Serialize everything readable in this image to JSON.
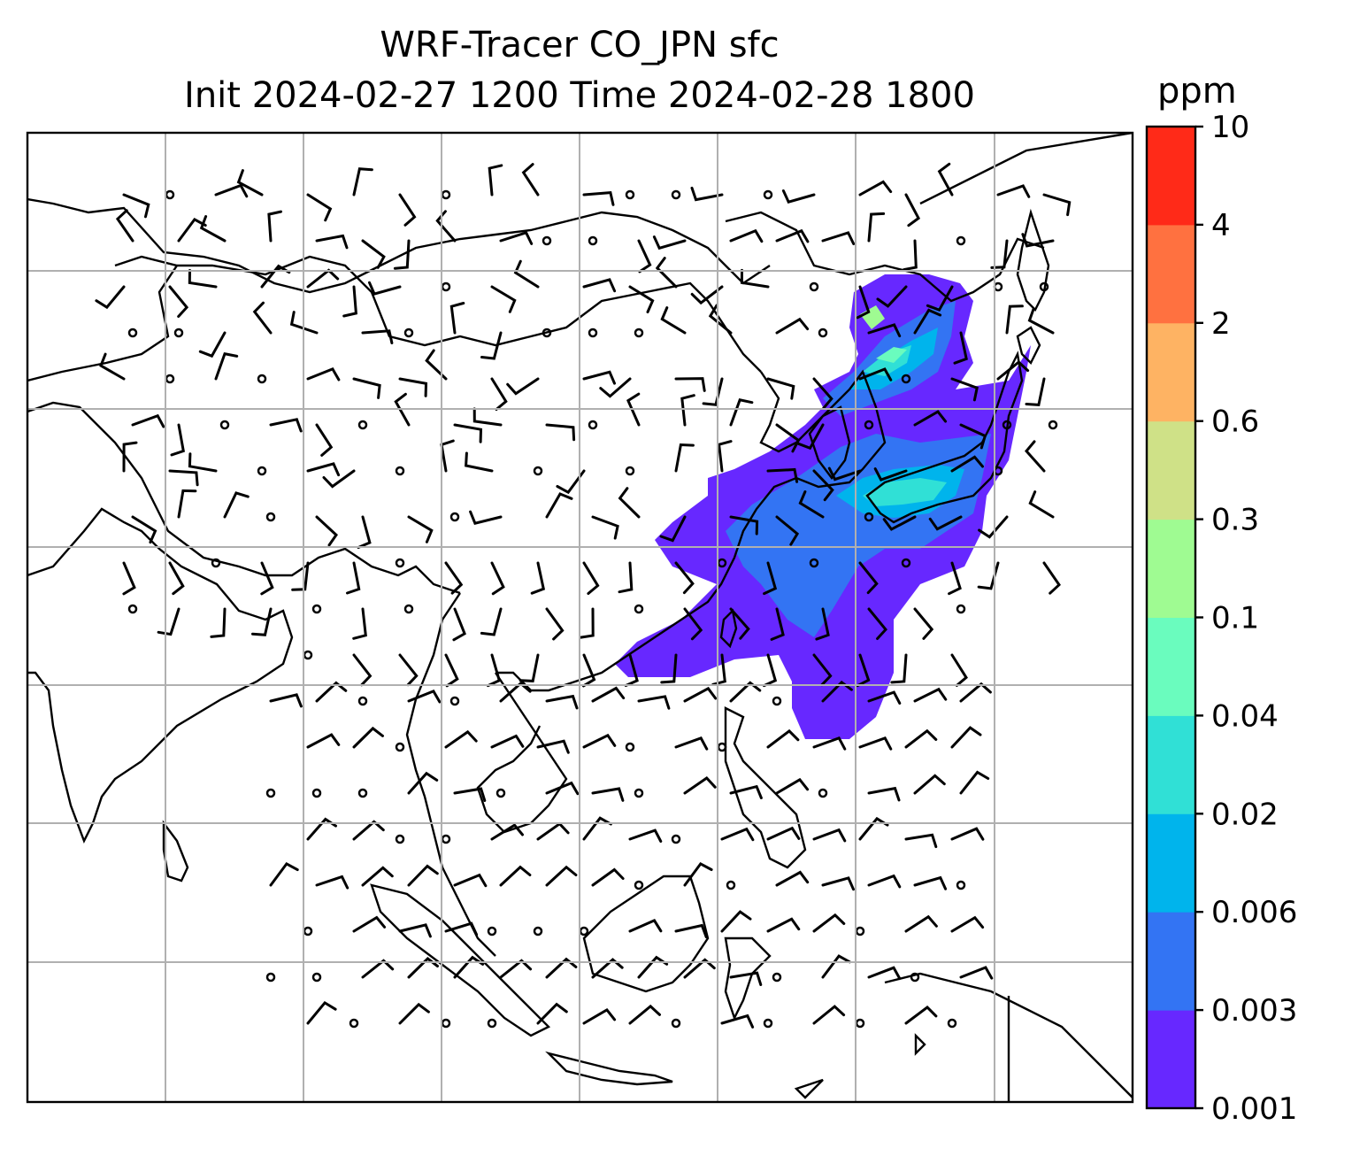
{
  "title": {
    "line1": "WRF-Tracer CO_JPN sfc",
    "line2": "Init 2024-02-27 1200 Time 2024-02-28 1800"
  },
  "colorbar": {
    "unit": "ppm",
    "levels": [
      "0.001",
      "0.003",
      "0.006",
      "0.02",
      "0.04",
      "0.1",
      "0.3",
      "0.6",
      "2",
      "4",
      "10"
    ],
    "colors": [
      "#6728ff",
      "#3374f3",
      "#00b4ec",
      "#30e0d6",
      "#6afcbe",
      "#9ffb92",
      "#cfe187",
      "#feb363",
      "#ff7140",
      "#ff2a18"
    ]
  },
  "map": {
    "grid_lines": {
      "vertical_count": 7,
      "horizontal_count": 6
    },
    "wind_barbs": "present",
    "calm_markers": "present"
  }
}
